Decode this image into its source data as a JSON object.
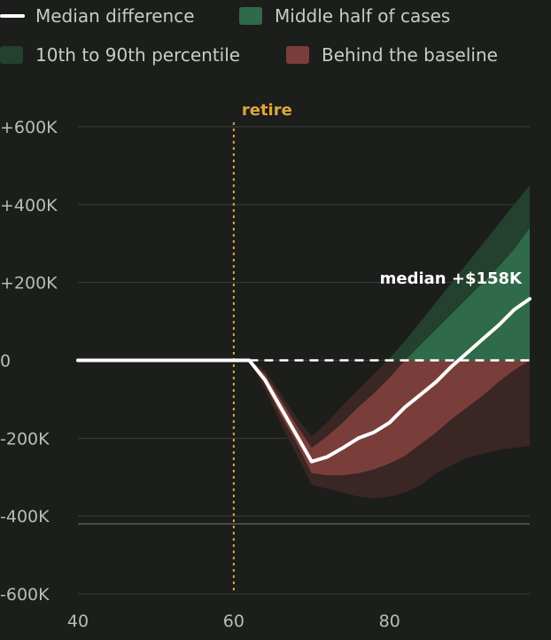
{
  "legend": {
    "median": "Median difference",
    "middle_half": "Middle half of cases",
    "p10_90": "10th to 90th percentile",
    "behind": "Behind the baseline"
  },
  "colors": {
    "background": "#1b1e1b",
    "median_line": "#ffffff",
    "middle_half_pos": "#2f6a4a",
    "middle_half_neg": "#7a3e3a",
    "outer_pos": "#24402f",
    "outer_neg": "#3a2624",
    "retire_line": "#e0a53a",
    "grid": "#3a3d3a",
    "tick_text": "#b9bdb6"
  },
  "chart_data": {
    "type": "area",
    "title": "",
    "xlabel": "",
    "ylabel": "",
    "xlim": [
      40,
      98
    ],
    "ylim": [
      -600000,
      600000
    ],
    "x_ticks": [
      40,
      60,
      80
    ],
    "x_tick_labels": [
      "40",
      "60",
      "80"
    ],
    "y_ticks": [
      600000,
      400000,
      200000,
      0,
      -200000,
      -400000,
      -600000
    ],
    "y_tick_labels": [
      "+600K",
      "+400K",
      "+200K",
      "0",
      "-200K",
      "-400K",
      "-600K"
    ],
    "grid": true,
    "legend_position": "top",
    "annotations": [
      {
        "text": "retire",
        "x": 60,
        "type": "vertical-line"
      },
      {
        "text": "median +$158K",
        "x": 98,
        "y": 158000,
        "type": "label"
      }
    ],
    "x": [
      40,
      60,
      62,
      64,
      66,
      68,
      70,
      72,
      74,
      76,
      78,
      80,
      82,
      84,
      86,
      88,
      90,
      92,
      94,
      96,
      98
    ],
    "series": [
      {
        "name": "Median difference",
        "values": [
          0,
          0,
          0,
          -50000,
          -120000,
          -190000,
          -260000,
          -248000,
          -225000,
          -200000,
          -185000,
          -160000,
          -120000,
          -88000,
          -55000,
          -15000,
          20000,
          55000,
          90000,
          130000,
          158000
        ]
      },
      {
        "name": "Middle half of cases (upper)",
        "values": [
          0,
          0,
          0,
          -35000,
          -100000,
          -165000,
          -225000,
          -195000,
          -160000,
          -120000,
          -85000,
          -45000,
          0,
          40000,
          80000,
          120000,
          160000,
          200000,
          240000,
          285000,
          340000
        ]
      },
      {
        "name": "Middle half of cases (lower)",
        "values": [
          0,
          0,
          0,
          -60000,
          -140000,
          -210000,
          -290000,
          -295000,
          -295000,
          -290000,
          -280000,
          -265000,
          -245000,
          -215000,
          -185000,
          -150000,
          -120000,
          -90000,
          -55000,
          -25000,
          0
        ]
      },
      {
        "name": "10th to 90th percentile (upper)",
        "values": [
          0,
          0,
          0,
          -25000,
          -85000,
          -145000,
          -195000,
          -160000,
          -115000,
          -75000,
          -35000,
          5000,
          50000,
          100000,
          150000,
          200000,
          250000,
          300000,
          350000,
          400000,
          450000
        ]
      },
      {
        "name": "10th to 90th percentile (lower)",
        "values": [
          0,
          0,
          0,
          -75000,
          -160000,
          -240000,
          -320000,
          -330000,
          -340000,
          -350000,
          -355000,
          -350000,
          -340000,
          -320000,
          -290000,
          -270000,
          -250000,
          -240000,
          -230000,
          -225000,
          -220000
        ]
      }
    ]
  }
}
